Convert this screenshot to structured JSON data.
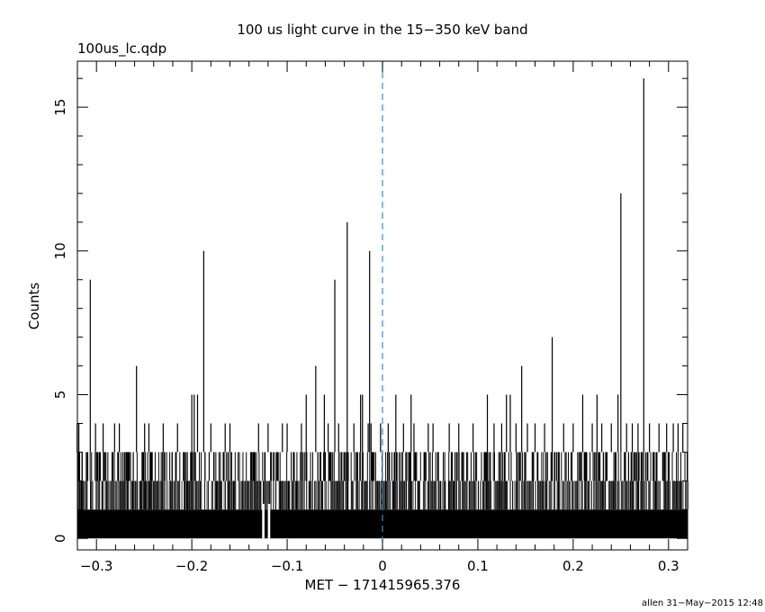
{
  "chart_data": {
    "type": "bar",
    "title": "100 us light curve in the 15−350 keV band",
    "subtitle": "100us_lc.qdp",
    "xlabel": "MET − 171415965.376",
    "ylabel": "Counts",
    "footer": "allen 31−May−2015 12:48",
    "xlim": [
      -0.32,
      0.32
    ],
    "ylim": [
      -0.4,
      16.6
    ],
    "x_ticks": [
      -0.3,
      -0.2,
      -0.1,
      0,
      0.1,
      0.2,
      0.3
    ],
    "x_tick_labels": [
      "−0.3",
      "−0.2",
      "−0.1",
      "0",
      "0.1",
      "0.2",
      "0.3"
    ],
    "y_ticks": [
      0,
      5,
      10,
      15
    ],
    "y_tick_labels": [
      "0",
      "5",
      "10",
      "15"
    ],
    "bin_width": 0.0001,
    "background_level": 1,
    "peaks": [
      {
        "x": -0.3203,
        "y": 4
      },
      {
        "x": -0.3185,
        "y": 4
      },
      {
        "x": -0.3065,
        "y": 9
      },
      {
        "x": -0.301,
        "y": 4
      },
      {
        "x": -0.293,
        "y": 4
      },
      {
        "x": -0.281,
        "y": 4
      },
      {
        "x": -0.276,
        "y": 4
      },
      {
        "x": -0.258,
        "y": 6
      },
      {
        "x": -0.2495,
        "y": 4
      },
      {
        "x": -0.245,
        "y": 4
      },
      {
        "x": -0.23,
        "y": 4
      },
      {
        "x": -0.215,
        "y": 4
      },
      {
        "x": -0.2,
        "y": 5
      },
      {
        "x": -0.1975,
        "y": 5
      },
      {
        "x": -0.194,
        "y": 5
      },
      {
        "x": -0.1875,
        "y": 10
      },
      {
        "x": -0.18,
        "y": 4
      },
      {
        "x": -0.165,
        "y": 4
      },
      {
        "x": -0.16,
        "y": 4
      },
      {
        "x": -0.13,
        "y": 4
      },
      {
        "x": -0.12,
        "y": 4
      },
      {
        "x": -0.105,
        "y": 4
      },
      {
        "x": -0.1,
        "y": 4
      },
      {
        "x": -0.085,
        "y": 4
      },
      {
        "x": -0.08,
        "y": 5
      },
      {
        "x": -0.07,
        "y": 6
      },
      {
        "x": -0.061,
        "y": 5
      },
      {
        "x": -0.057,
        "y": 4
      },
      {
        "x": -0.05,
        "y": 9
      },
      {
        "x": -0.046,
        "y": 4
      },
      {
        "x": -0.037,
        "y": 11
      },
      {
        "x": -0.03,
        "y": 4
      },
      {
        "x": -0.023,
        "y": 5
      },
      {
        "x": -0.021,
        "y": 5
      },
      {
        "x": -0.015,
        "y": 4
      },
      {
        "x": -0.012,
        "y": 4
      },
      {
        "x": -0.0135,
        "y": 10
      },
      {
        "x": -0.002,
        "y": 4
      },
      {
        "x": 0.006,
        "y": 4
      },
      {
        "x": 0.014,
        "y": 5
      },
      {
        "x": 0.022,
        "y": 4
      },
      {
        "x": 0.03,
        "y": 5
      },
      {
        "x": 0.033,
        "y": 4
      },
      {
        "x": 0.048,
        "y": 4
      },
      {
        "x": 0.053,
        "y": 4
      },
      {
        "x": 0.07,
        "y": 4
      },
      {
        "x": 0.08,
        "y": 4
      },
      {
        "x": 0.095,
        "y": 4
      },
      {
        "x": 0.11,
        "y": 5
      },
      {
        "x": 0.117,
        "y": 4
      },
      {
        "x": 0.125,
        "y": 4
      },
      {
        "x": 0.13,
        "y": 5
      },
      {
        "x": 0.134,
        "y": 5
      },
      {
        "x": 0.14,
        "y": 4
      },
      {
        "x": 0.146,
        "y": 6
      },
      {
        "x": 0.152,
        "y": 4
      },
      {
        "x": 0.16,
        "y": 4
      },
      {
        "x": 0.17,
        "y": 4
      },
      {
        "x": 0.178,
        "y": 7
      },
      {
        "x": 0.19,
        "y": 4
      },
      {
        "x": 0.2,
        "y": 4
      },
      {
        "x": 0.21,
        "y": 5
      },
      {
        "x": 0.22,
        "y": 4
      },
      {
        "x": 0.225,
        "y": 5
      },
      {
        "x": 0.23,
        "y": 4
      },
      {
        "x": 0.24,
        "y": 4
      },
      {
        "x": 0.247,
        "y": 5
      },
      {
        "x": 0.25,
        "y": 12
      },
      {
        "x": 0.256,
        "y": 4
      },
      {
        "x": 0.262,
        "y": 4
      },
      {
        "x": 0.268,
        "y": 4
      },
      {
        "x": 0.274,
        "y": 16
      },
      {
        "x": 0.28,
        "y": 4
      },
      {
        "x": 0.29,
        "y": 4
      },
      {
        "x": 0.298,
        "y": 4
      },
      {
        "x": 0.305,
        "y": 4
      },
      {
        "x": 0.31,
        "y": 4
      },
      {
        "x": 0.315,
        "y": 4
      }
    ],
    "zero_bins": [
      -0.1255,
      -0.1245,
      -0.1195,
      -0.1185
    ],
    "reference_line": {
      "x": 0,
      "color": "#2a8fd6",
      "style": "dashed"
    },
    "grid": false,
    "legend": "none"
  }
}
